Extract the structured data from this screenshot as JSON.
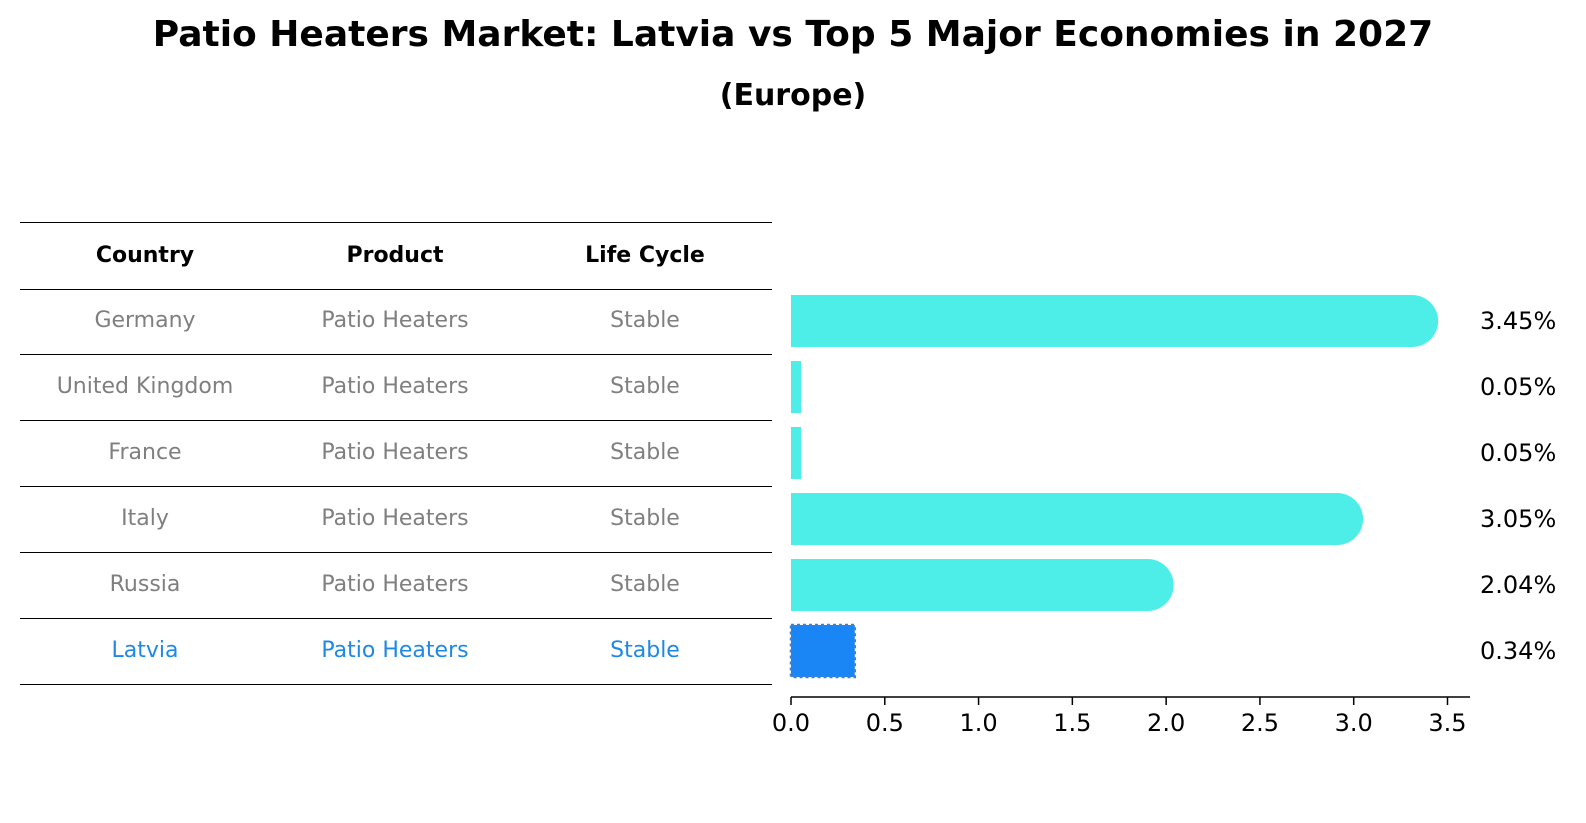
{
  "title": "Patio Heaters Market: Latvia vs Top 5 Major Economies in 2027",
  "subtitle": "(Europe)",
  "table": {
    "headers": [
      "Country",
      "Product",
      "Life Cycle"
    ],
    "rows": [
      [
        "Germany",
        "Patio Heaters",
        "Stable"
      ],
      [
        "United Kingdom",
        "Patio Heaters",
        "Stable"
      ],
      [
        "France",
        "Patio Heaters",
        "Stable"
      ],
      [
        "Italy",
        "Patio Heaters",
        "Stable"
      ],
      [
        "Russia",
        "Patio Heaters",
        "Stable"
      ],
      [
        "Latvia",
        "Patio Heaters",
        "Stable"
      ]
    ],
    "highlight_row": 5
  },
  "chart_data": {
    "type": "bar",
    "orientation": "horizontal",
    "categories": [
      "Germany",
      "United Kingdom",
      "France",
      "Italy",
      "Russia",
      "Latvia"
    ],
    "values": [
      3.45,
      0.05,
      0.05,
      3.05,
      2.04,
      0.34
    ],
    "value_labels": [
      "3.45%",
      "0.05%",
      "0.05%",
      "3.05%",
      "2.04%",
      "0.34%"
    ],
    "xlim": [
      0,
      3.62
    ],
    "xticks": [
      0.0,
      0.5,
      1.0,
      1.5,
      2.0,
      2.5,
      3.0,
      3.5
    ],
    "xtick_labels": [
      "0.0",
      "0.5",
      "1.0",
      "1.5",
      "2.0",
      "2.5",
      "3.0",
      "3.5"
    ],
    "colors": {
      "default": "#4deee8",
      "highlight": "#1a86f5",
      "highlight_border": "#3f7fd0"
    },
    "highlight_index": 5,
    "grid": false
  }
}
